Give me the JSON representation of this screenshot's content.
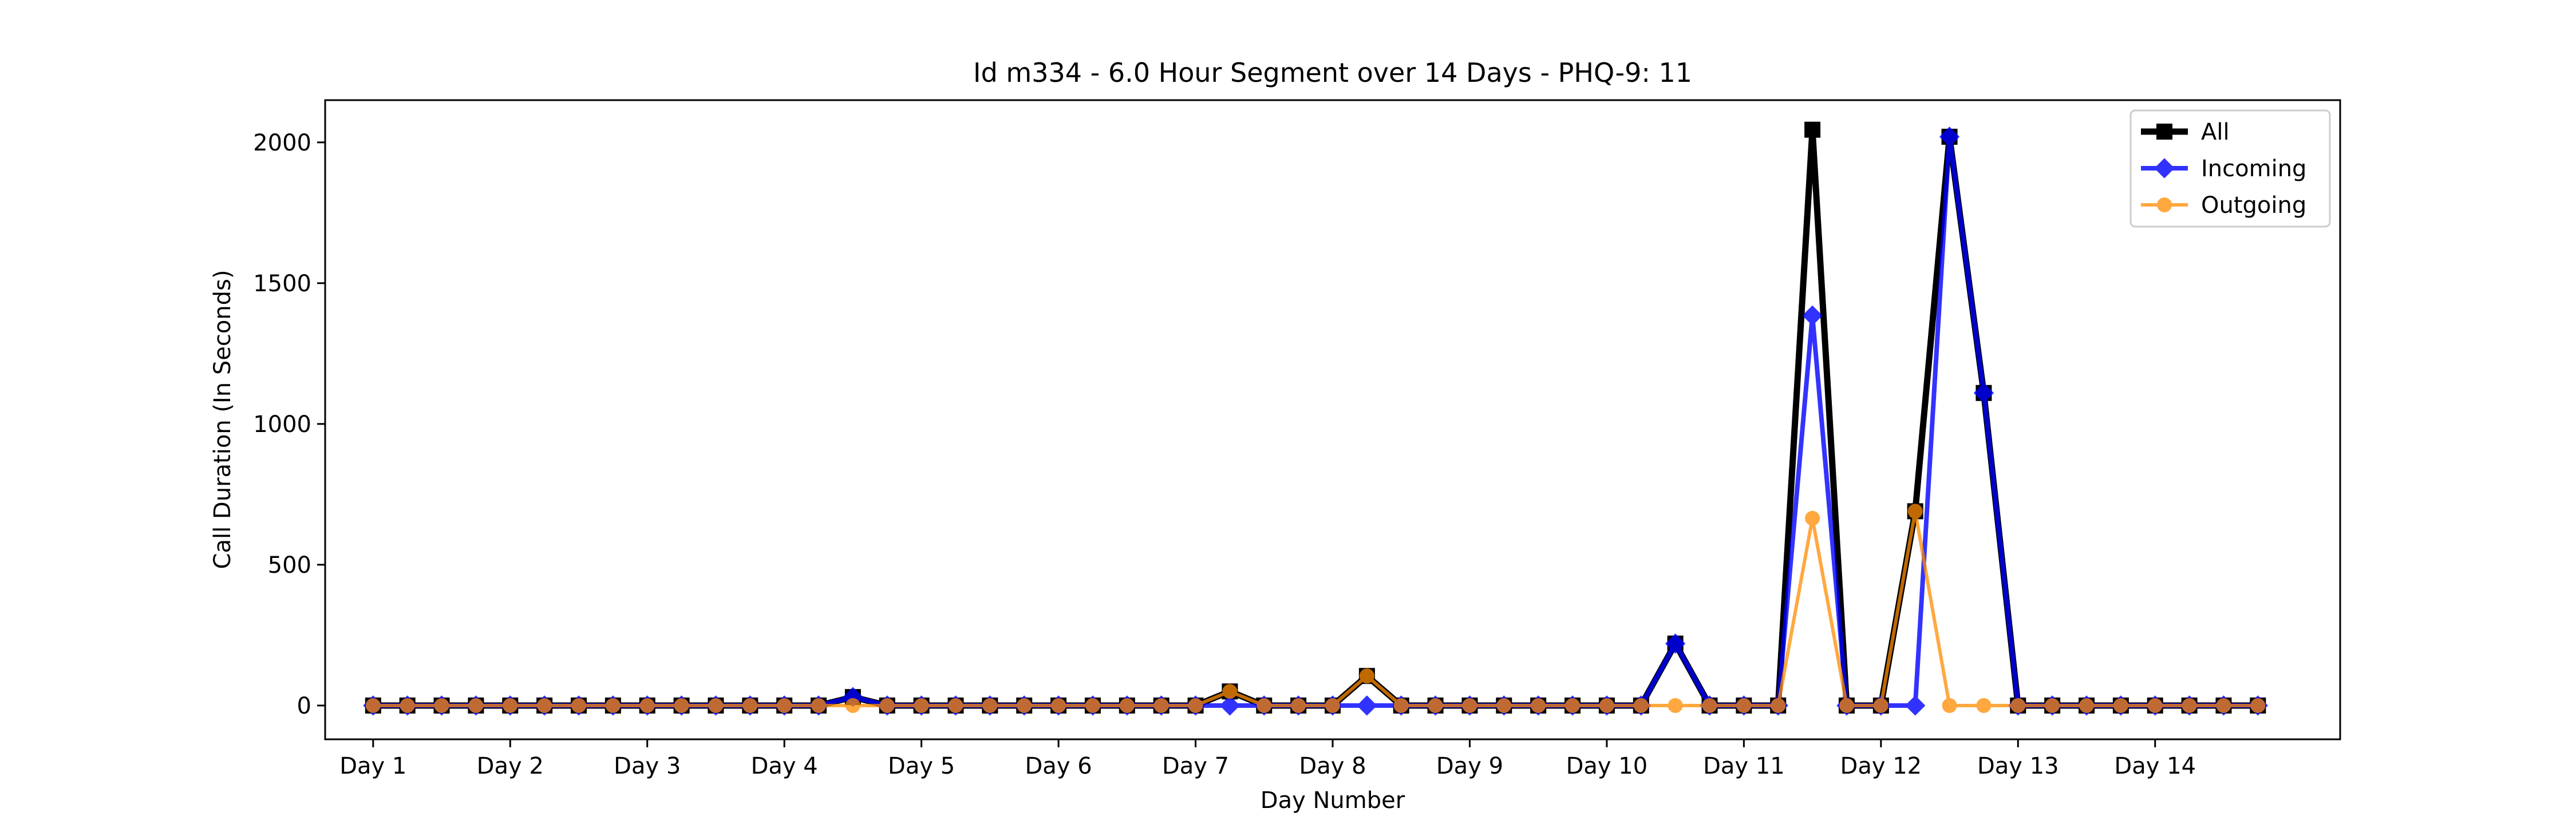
{
  "chart_data": {
    "type": "line",
    "title": "Id m334 - 6.0 Hour Segment over 14 Days - PHQ-9: 11",
    "xlabel": "Day Number",
    "ylabel": "Call Duration (In Seconds)",
    "xtick_labels": [
      "Day 1",
      "Day 2",
      "Day 3",
      "Day 4",
      "Day 5",
      "Day 6",
      "Day 7",
      "Day 8",
      "Day 9",
      "Day 10",
      "Day 11",
      "Day 12",
      "Day 13",
      "Day 14"
    ],
    "yticks": [
      0,
      500,
      1000,
      1500,
      2000
    ],
    "ylim": [
      -120,
      2150
    ],
    "xlim": [
      -1.4,
      57.4
    ],
    "grid": false,
    "legend": "top-right",
    "series": [
      {
        "name": "All",
        "color": "#000000",
        "marker": "square",
        "values": [
          0,
          0,
          0,
          0,
          0,
          0,
          0,
          0,
          0,
          0,
          0,
          0,
          0,
          0,
          30,
          0,
          0,
          0,
          0,
          0,
          0,
          0,
          0,
          0,
          0,
          50,
          0,
          0,
          0,
          105,
          0,
          0,
          0,
          0,
          0,
          0,
          0,
          0,
          220,
          0,
          0,
          0,
          2045,
          0,
          0,
          690,
          2020,
          1110,
          0,
          0,
          0,
          0,
          0,
          0,
          0,
          0
        ]
      },
      {
        "name": "Incoming",
        "color": "#0000ff",
        "marker": "diamond",
        "values": [
          0,
          0,
          0,
          0,
          0,
          0,
          0,
          0,
          0,
          0,
          0,
          0,
          0,
          0,
          30,
          0,
          0,
          0,
          0,
          0,
          0,
          0,
          0,
          0,
          0,
          0,
          0,
          0,
          0,
          0,
          0,
          0,
          0,
          0,
          0,
          0,
          0,
          0,
          220,
          0,
          0,
          0,
          1385,
          0,
          0,
          0,
          2020,
          1110,
          0,
          0,
          0,
          0,
          0,
          0,
          0,
          0
        ]
      },
      {
        "name": "Outgoing",
        "color": "#ff8c00",
        "marker": "circle",
        "values": [
          0,
          0,
          0,
          0,
          0,
          0,
          0,
          0,
          0,
          0,
          0,
          0,
          0,
          0,
          0,
          0,
          0,
          0,
          0,
          0,
          0,
          0,
          0,
          0,
          0,
          50,
          0,
          0,
          0,
          105,
          0,
          0,
          0,
          0,
          0,
          0,
          0,
          0,
          0,
          0,
          0,
          0,
          665,
          0,
          0,
          690,
          0,
          0,
          0,
          0,
          0,
          0,
          0,
          0,
          0,
          0
        ]
      }
    ]
  }
}
